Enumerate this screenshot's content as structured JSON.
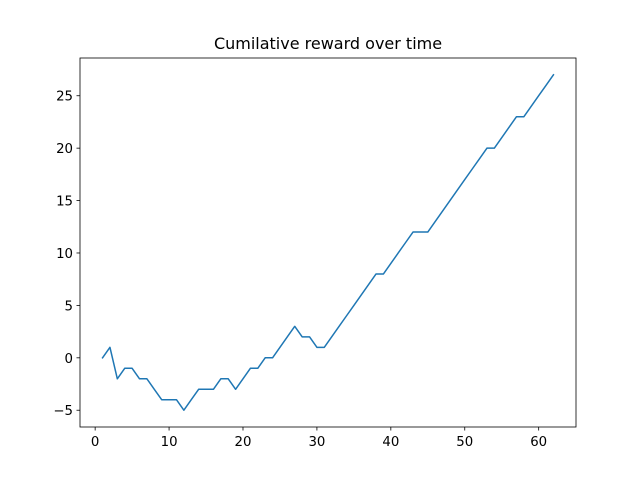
{
  "chart_data": {
    "type": "line",
    "title": "Cumilative reward over time",
    "xlabel": "",
    "ylabel": "",
    "xlim": [
      -2.05,
      65.05
    ],
    "ylim": [
      -6.6,
      28.6
    ],
    "xticks": [
      0,
      10,
      20,
      30,
      40,
      50,
      60
    ],
    "yticks": [
      -5,
      0,
      5,
      10,
      15,
      20,
      25
    ],
    "grid": false,
    "legend": "none",
    "series": [
      {
        "color": "#1f77b4",
        "x": [
          1,
          2,
          3,
          4,
          5,
          6,
          7,
          8,
          9,
          10,
          11,
          12,
          13,
          14,
          15,
          16,
          17,
          18,
          19,
          20,
          21,
          22,
          23,
          24,
          25,
          26,
          27,
          28,
          29,
          30,
          31,
          32,
          33,
          34,
          35,
          36,
          37,
          38,
          39,
          40,
          41,
          42,
          43,
          44,
          45,
          46,
          47,
          48,
          49,
          50,
          51,
          52,
          53,
          54,
          55,
          56,
          57,
          58,
          59,
          60,
          61,
          62
        ],
        "y": [
          0,
          1,
          -2,
          -1,
          -1,
          -2,
          -2,
          -3,
          -4,
          -4,
          -4,
          -5,
          -4,
          -3,
          -3,
          -3,
          -2,
          -2,
          -3,
          -2,
          -1,
          -1,
          0,
          0,
          1,
          2,
          3,
          2,
          2,
          1,
          1,
          2,
          3,
          4,
          5,
          6,
          7,
          8,
          8,
          9,
          10,
          11,
          12,
          12,
          12,
          13,
          14,
          15,
          16,
          17,
          18,
          19,
          20,
          20,
          21,
          22,
          23,
          23,
          24,
          25,
          26,
          27
        ]
      }
    ]
  }
}
